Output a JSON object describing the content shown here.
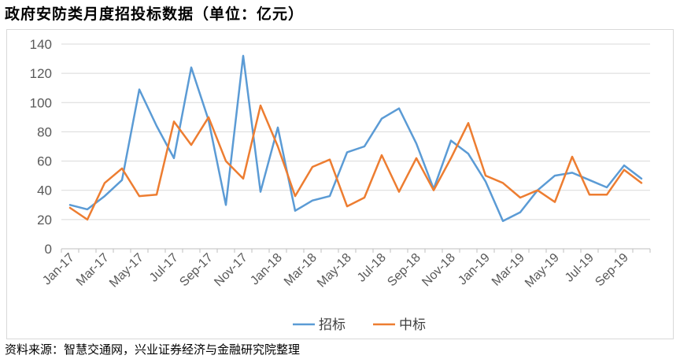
{
  "title": "政府安防类月度招投标数据（单位：亿元）",
  "source": "资料来源：智慧交通网，兴业证券经济与金融研究院整理",
  "chart_data": {
    "type": "line",
    "title": "政府安防类月度招投标数据（单位：亿元）",
    "xlabel": "",
    "ylabel": "",
    "ylim": [
      0,
      140
    ],
    "yticks": [
      0,
      20,
      40,
      60,
      80,
      100,
      120,
      140
    ],
    "grid": true,
    "legend_position": "bottom",
    "x": [
      "Jan-17",
      "Feb-17",
      "Mar-17",
      "Apr-17",
      "May-17",
      "Jun-17",
      "Jul-17",
      "Aug-17",
      "Sep-17",
      "Oct-17",
      "Nov-17",
      "Dec-17",
      "Jan-18",
      "Feb-18",
      "Mar-18",
      "Apr-18",
      "May-18",
      "Jun-18",
      "Jul-18",
      "Aug-18",
      "Sep-18",
      "Oct-18",
      "Nov-18",
      "Dec-18",
      "Jan-19",
      "Feb-19",
      "Mar-19",
      "Apr-19",
      "May-19",
      "Jun-19",
      "Jul-19",
      "Aug-19",
      "Sep-19",
      "Oct-19"
    ],
    "xtick_labels": [
      "Jan-17",
      "Mar-17",
      "May-17",
      "Jul-17",
      "Sep-17",
      "Nov-17",
      "Jan-18",
      "Mar-18",
      "May-18",
      "Jul-18",
      "Sep-18",
      "Nov-18",
      "Jan-19",
      "Mar-19",
      "May-19",
      "Jul-19",
      "Sep-19"
    ],
    "series": [
      {
        "name": "招标",
        "color": "#5B9BD5",
        "values": [
          30,
          27,
          36,
          47,
          109,
          84,
          62,
          124,
          88,
          30,
          132,
          39,
          83,
          26,
          33,
          36,
          66,
          70,
          89,
          96,
          72,
          41,
          74,
          65,
          46,
          19,
          25,
          40,
          50,
          52,
          47,
          42,
          57,
          48
        ]
      },
      {
        "name": "中标",
        "color": "#ED7D31",
        "values": [
          28,
          20,
          45,
          55,
          36,
          37,
          87,
          71,
          90,
          60,
          48,
          98,
          70,
          36,
          56,
          61,
          29,
          35,
          64,
          39,
          62,
          40,
          62,
          86,
          50,
          45,
          35,
          40,
          32,
          63,
          37,
          37,
          54,
          45
        ]
      }
    ]
  }
}
